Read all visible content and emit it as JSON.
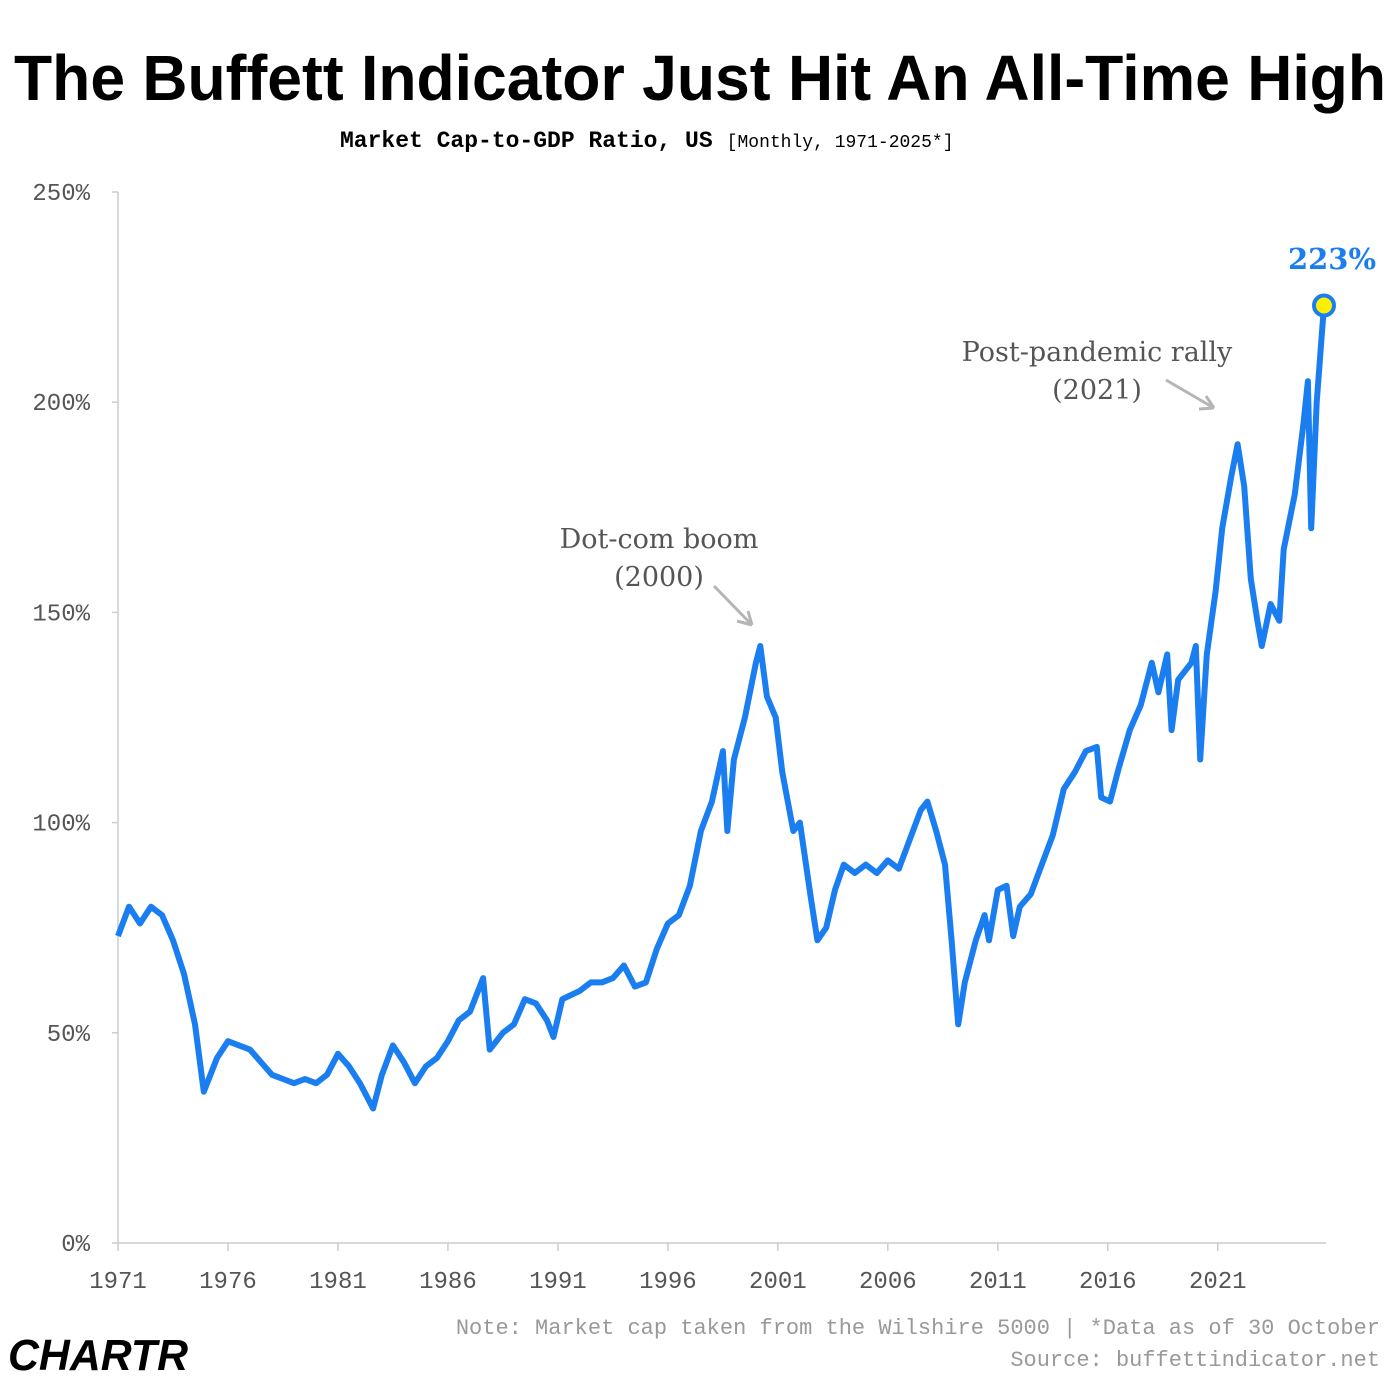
{
  "chart_data": {
    "type": "line",
    "title": "The Buffett Indicator Just Hit An All-Time High",
    "subtitle": "Market Cap-to-GDP Ratio, US",
    "subtitle_note": "[Monthly, 1971-2025*]",
    "x": [
      1971.0,
      1971.5,
      1972.0,
      1972.5,
      1973.0,
      1973.5,
      1974.0,
      1974.5,
      1974.9,
      1975.5,
      1976.0,
      1976.5,
      1977.0,
      1977.5,
      1978.0,
      1978.5,
      1979.0,
      1979.5,
      1980.0,
      1980.5,
      1981.0,
      1981.5,
      1982.0,
      1982.6,
      1983.0,
      1983.5,
      1984.0,
      1984.5,
      1985.0,
      1985.5,
      1986.0,
      1986.5,
      1987.0,
      1987.6,
      1987.9,
      1988.5,
      1989.0,
      1989.5,
      1990.0,
      1990.5,
      1990.8,
      1991.2,
      1992.0,
      1992.5,
      1993.0,
      1993.5,
      1994.0,
      1994.5,
      1995.0,
      1995.5,
      1996.0,
      1996.5,
      1997.0,
      1997.5,
      1998.0,
      1998.5,
      1998.7,
      1999.0,
      1999.5,
      2000.0,
      2000.2,
      2000.5,
      2000.9,
      2001.2,
      2001.7,
      2002.0,
      2002.5,
      2002.8,
      2003.2,
      2003.6,
      2004.0,
      2004.5,
      2005.0,
      2005.5,
      2006.0,
      2006.5,
      2007.0,
      2007.5,
      2007.8,
      2008.2,
      2008.6,
      2008.9,
      2009.2,
      2009.5,
      2010.0,
      2010.4,
      2010.6,
      2011.0,
      2011.4,
      2011.7,
      2012.0,
      2012.5,
      2013.0,
      2013.5,
      2014.0,
      2014.5,
      2015.0,
      2015.5,
      2015.7,
      2016.1,
      2016.5,
      2017.0,
      2017.5,
      2018.0,
      2018.3,
      2018.7,
      2018.9,
      2019.2,
      2019.8,
      2020.0,
      2020.2,
      2020.5,
      2020.9,
      2021.2,
      2021.6,
      2021.9,
      2022.2,
      2022.5,
      2022.8,
      2023.0,
      2023.4,
      2023.8,
      2024.0,
      2024.5,
      2024.9,
      2025.1,
      2025.25,
      2025.5,
      2025.83
    ],
    "series": [
      {
        "name": "Market Cap-to-GDP Ratio",
        "color": "#1a7ef0",
        "values": [
          73,
          80,
          76,
          80,
          78,
          72,
          64,
          52,
          36,
          44,
          48,
          47,
          46,
          43,
          40,
          39,
          38,
          39,
          38,
          40,
          45,
          42,
          38,
          32,
          40,
          47,
          43,
          38,
          42,
          44,
          48,
          53,
          55,
          63,
          46,
          50,
          52,
          58,
          57,
          53,
          49,
          58,
          60,
          62,
          62,
          63,
          66,
          61,
          62,
          70,
          76,
          78,
          85,
          98,
          105,
          117,
          98,
          115,
          125,
          138,
          142,
          130,
          125,
          112,
          98,
          100,
          82,
          72,
          75,
          84,
          90,
          88,
          90,
          88,
          91,
          89,
          96,
          103,
          105,
          98,
          90,
          72,
          52,
          62,
          72,
          78,
          72,
          84,
          85,
          73,
          80,
          83,
          90,
          97,
          108,
          112,
          117,
          118,
          106,
          105,
          113,
          122,
          128,
          138,
          131,
          140,
          122,
          134,
          138,
          142,
          115,
          140,
          155,
          170,
          182,
          190,
          180,
          158,
          148,
          142,
          152,
          148,
          165,
          178,
          195,
          205,
          170,
          200,
          223
        ]
      }
    ],
    "xlim": [
      1971,
      2025.83
    ],
    "xticks": [
      1971,
      1976,
      1981,
      1986,
      1991,
      1996,
      2001,
      2006,
      2011,
      2016,
      2021
    ],
    "ylim": [
      0,
      250
    ],
    "yticks": [
      {
        "value": 0,
        "label": "0%"
      },
      {
        "value": 50,
        "label": "50%"
      },
      {
        "value": 100,
        "label": "100%"
      },
      {
        "value": 150,
        "label": "150%"
      },
      {
        "value": 200,
        "label": "200%"
      },
      {
        "value": 250,
        "label": "250%"
      }
    ],
    "annotations": [
      {
        "text": "Dot-com boom"
      },
      {
        "text": "(2000)"
      },
      {
        "text": "Post-pandemic rally"
      },
      {
        "text": "(2021)"
      },
      {
        "text": "223%"
      }
    ],
    "note": "Note: Market cap taken from the Wilshire 5000 | *Data as of 30 October",
    "source": "Source: buffettindicator.net",
    "logo": "CHARTR"
  }
}
